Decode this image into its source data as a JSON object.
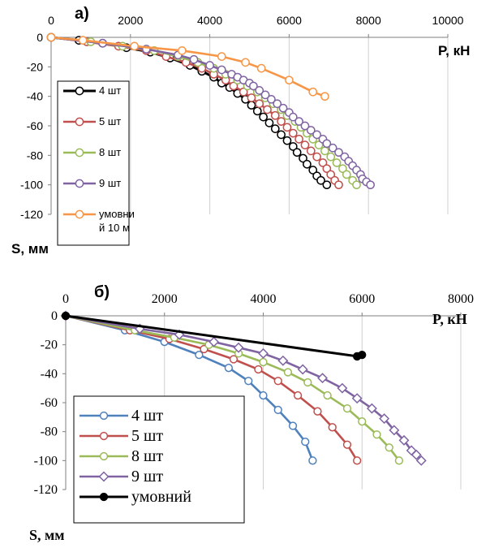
{
  "chart_data": [
    {
      "id": "a",
      "type": "line",
      "panel_label": "а)",
      "xlabel": "P, кН",
      "ylabel": "S, мм",
      "xlim": [
        0,
        10000
      ],
      "ylim": [
        -120,
        0
      ],
      "x_ticks": [
        "0",
        "2000",
        "4000",
        "6000",
        "8000",
        "10000"
      ],
      "y_ticks": [
        "0",
        "-20",
        "-40",
        "-60",
        "-80",
        "-100",
        "-120"
      ],
      "grid": "vertical",
      "legend_position": "left",
      "series": [
        {
          "name": "4 шт",
          "color": "#000000",
          "marker": "circle",
          "points": [
            [
              0,
              0
            ],
            [
              700,
              -2
            ],
            [
              1300,
              -4
            ],
            [
              1900,
              -7
            ],
            [
              2500,
              -10
            ],
            [
              3000,
              -14
            ],
            [
              3500,
              -19
            ],
            [
              3800,
              -23
            ],
            [
              4100,
              -27
            ],
            [
              4300,
              -31
            ],
            [
              4500,
              -34
            ],
            [
              4700,
              -38
            ],
            [
              4900,
              -42
            ],
            [
              5050,
              -46
            ],
            [
              5200,
              -50
            ],
            [
              5350,
              -54
            ],
            [
              5500,
              -58
            ],
            [
              5650,
              -62
            ],
            [
              5800,
              -66
            ],
            [
              5950,
              -70
            ],
            [
              6100,
              -74
            ],
            [
              6200,
              -78
            ],
            [
              6350,
              -82
            ],
            [
              6450,
              -86
            ],
            [
              6600,
              -90
            ],
            [
              6700,
              -94
            ],
            [
              6800,
              -97
            ],
            [
              6950,
              -100
            ]
          ]
        },
        {
          "name": "5 шт",
          "color": "#c0504d",
          "marker": "circle",
          "points": [
            [
              0,
              0
            ],
            [
              900,
              -3
            ],
            [
              1700,
              -6
            ],
            [
              2400,
              -9
            ],
            [
              2900,
              -13
            ],
            [
              3400,
              -17
            ],
            [
              3800,
              -21
            ],
            [
              4100,
              -25
            ],
            [
              4400,
              -29
            ],
            [
              4600,
              -33
            ],
            [
              4850,
              -37
            ],
            [
              5050,
              -41
            ],
            [
              5250,
              -45
            ],
            [
              5450,
              -49
            ],
            [
              5650,
              -53
            ],
            [
              5800,
              -57
            ],
            [
              5950,
              -61
            ],
            [
              6100,
              -65
            ],
            [
              6250,
              -69
            ],
            [
              6400,
              -73
            ],
            [
              6550,
              -77
            ],
            [
              6700,
              -81
            ],
            [
              6850,
              -85
            ],
            [
              6950,
              -89
            ],
            [
              7050,
              -93
            ],
            [
              7150,
              -97
            ],
            [
              7250,
              -100
            ]
          ]
        },
        {
          "name": "8 шт",
          "color": "#9bbb59",
          "marker": "circle",
          "points": [
            [
              0,
              0
            ],
            [
              1000,
              -3
            ],
            [
              1800,
              -6
            ],
            [
              2600,
              -9
            ],
            [
              3200,
              -13
            ],
            [
              3700,
              -17
            ],
            [
              4100,
              -21
            ],
            [
              4400,
              -25
            ],
            [
              4700,
              -29
            ],
            [
              4950,
              -33
            ],
            [
              5200,
              -37
            ],
            [
              5400,
              -41
            ],
            [
              5600,
              -45
            ],
            [
              5800,
              -49
            ],
            [
              5950,
              -53
            ],
            [
              6150,
              -57
            ],
            [
              6300,
              -61
            ],
            [
              6450,
              -65
            ],
            [
              6600,
              -69
            ],
            [
              6750,
              -73
            ],
            [
              6900,
              -77
            ],
            [
              7050,
              -81
            ],
            [
              7200,
              -85
            ],
            [
              7350,
              -89
            ],
            [
              7450,
              -93
            ],
            [
              7600,
              -97
            ],
            [
              7700,
              -100
            ]
          ]
        },
        {
          "name": "9 шт",
          "color": "#8064a2",
          "marker": "circle",
          "points": [
            [
              0,
              0
            ],
            [
              1300,
              -4
            ],
            [
              2400,
              -8
            ],
            [
              3200,
              -12
            ],
            [
              3600,
              -15
            ],
            [
              4000,
              -19
            ],
            [
              4300,
              -22
            ],
            [
              4550,
              -25
            ],
            [
              4700,
              -27
            ],
            [
              4850,
              -29
            ],
            [
              5000,
              -31
            ],
            [
              5100,
              -33
            ],
            [
              5250,
              -36
            ],
            [
              5400,
              -39
            ],
            [
              5550,
              -42
            ],
            [
              5700,
              -45
            ],
            [
              5850,
              -48
            ],
            [
              6000,
              -51
            ],
            [
              6100,
              -54
            ],
            [
              6250,
              -57
            ],
            [
              6400,
              -60
            ],
            [
              6550,
              -63
            ],
            [
              6700,
              -66
            ],
            [
              6850,
              -69
            ],
            [
              6950,
              -72
            ],
            [
              7100,
              -75
            ],
            [
              7250,
              -78
            ],
            [
              7400,
              -81
            ],
            [
              7500,
              -84
            ],
            [
              7600,
              -87
            ],
            [
              7700,
              -90
            ],
            [
              7800,
              -93
            ],
            [
              7850,
              -96
            ],
            [
              7950,
              -98
            ],
            [
              8050,
              -100
            ]
          ]
        },
        {
          "name": "умовний 10 м",
          "color": "#f79646",
          "marker": "circle",
          "points": [
            [
              0,
              0
            ],
            [
              800,
              -2
            ],
            [
              2100,
              -6
            ],
            [
              3300,
              -9
            ],
            [
              4300,
              -13
            ],
            [
              4900,
              -17
            ],
            [
              5300,
              -21
            ],
            [
              6000,
              -29
            ],
            [
              6600,
              -37
            ],
            [
              6900,
              -40
            ]
          ]
        }
      ]
    },
    {
      "id": "b",
      "type": "line",
      "panel_label": "б)",
      "xlabel": "P, кН",
      "ylabel": "S, мм",
      "xlim": [
        0,
        8000
      ],
      "ylim": [
        -120,
        0
      ],
      "x_ticks": [
        "0",
        "2000",
        "4000",
        "6000",
        "8000"
      ],
      "y_ticks": [
        "0",
        "-20",
        "-40",
        "-60",
        "-80",
        "-100",
        "-120"
      ],
      "grid": "vertical",
      "legend_position": "bottom-left",
      "series": [
        {
          "name": "4 шт",
          "color": "#4f81bd",
          "marker": "circle",
          "points": [
            [
              0,
              0
            ],
            [
              1200,
              -10
            ],
            [
              2000,
              -18
            ],
            [
              2700,
              -27
            ],
            [
              3300,
              -36
            ],
            [
              3700,
              -45
            ],
            [
              4000,
              -55
            ],
            [
              4300,
              -65
            ],
            [
              4600,
              -76
            ],
            [
              4850,
              -87
            ],
            [
              5000,
              -100
            ]
          ]
        },
        {
          "name": "5 шт",
          "color": "#c0504d",
          "marker": "circle",
          "points": [
            [
              0,
              0
            ],
            [
              1300,
              -10
            ],
            [
              2100,
              -16
            ],
            [
              2800,
              -23
            ],
            [
              3400,
              -30
            ],
            [
              3900,
              -37
            ],
            [
              4300,
              -45
            ],
            [
              4700,
              -55
            ],
            [
              5100,
              -66
            ],
            [
              5400,
              -77
            ],
            [
              5700,
              -89
            ],
            [
              5900,
              -100
            ]
          ]
        },
        {
          "name": "8 шт",
          "color": "#9bbb59",
          "marker": "circle",
          "points": [
            [
              0,
              0
            ],
            [
              1400,
              -10
            ],
            [
              2200,
              -15
            ],
            [
              2900,
              -20
            ],
            [
              3500,
              -26
            ],
            [
              4000,
              -32
            ],
            [
              4500,
              -39
            ],
            [
              4900,
              -46
            ],
            [
              5300,
              -55
            ],
            [
              5700,
              -64
            ],
            [
              6000,
              -73
            ],
            [
              6300,
              -82
            ],
            [
              6550,
              -91
            ],
            [
              6750,
              -100
            ]
          ]
        },
        {
          "name": "9 шт",
          "color": "#8064a2",
          "marker": "diamond",
          "points": [
            [
              0,
              0
            ],
            [
              1500,
              -9
            ],
            [
              2300,
              -13
            ],
            [
              3000,
              -18
            ],
            [
              3500,
              -22
            ],
            [
              4000,
              -26
            ],
            [
              4400,
              -31
            ],
            [
              4800,
              -37
            ],
            [
              5200,
              -43
            ],
            [
              5600,
              -50
            ],
            [
              5900,
              -57
            ],
            [
              6200,
              -64
            ],
            [
              6450,
              -71
            ],
            [
              6650,
              -79
            ],
            [
              6850,
              -86
            ],
            [
              7000,
              -93
            ],
            [
              7100,
              -96
            ],
            [
              7200,
              -100
            ]
          ]
        },
        {
          "name": "умовний",
          "color": "#000000",
          "marker": "circle",
          "points": [
            [
              0,
              0
            ],
            [
              5900,
              -28
            ],
            [
              6000,
              -27
            ]
          ]
        }
      ]
    }
  ]
}
